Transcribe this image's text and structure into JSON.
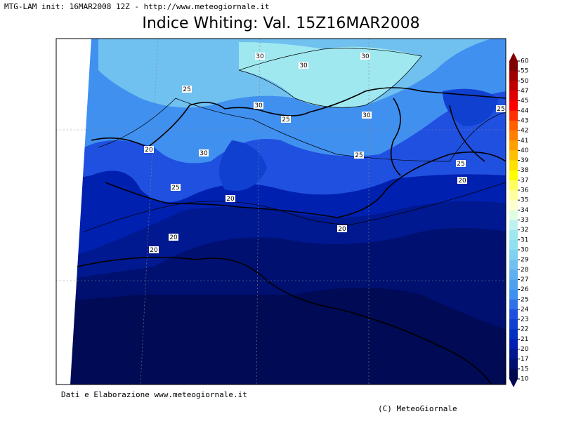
{
  "header": {
    "info": "MTG-LAM init: 16MAR2008 12Z - http://www.meteogiornale.it",
    "title": "Indice Whiting: Val. 15Z16MAR2008"
  },
  "colorbar": {
    "levels": [
      60,
      55,
      50,
      47,
      45,
      44,
      43,
      42,
      41,
      40,
      39,
      38,
      37,
      36,
      35,
      34,
      33,
      32,
      31,
      30,
      29,
      28,
      27,
      26,
      25,
      24,
      23,
      22,
      21,
      20,
      17,
      15,
      10
    ],
    "colors": [
      "#800000",
      "#a00000",
      "#c00000",
      "#e00000",
      "#ff0000",
      "#ff3000",
      "#ff6000",
      "#ff8000",
      "#ffa000",
      "#ffc000",
      "#ffe000",
      "#ffff00",
      "#ffff60",
      "#ffffa0",
      "#ffffd0",
      "#e0ffe0",
      "#c0f0f0",
      "#a0e8f0",
      "#90e0f0",
      "#80d0f0",
      "#70c0f0",
      "#60b0f0",
      "#50a0f0",
      "#4090f0",
      "#3070e8",
      "#2050e0",
      "#1040d0",
      "#0030c0",
      "#0020b0",
      "#001890",
      "#001070",
      "#000850"
    ]
  },
  "contour_labels": [
    "30",
    "30",
    "30",
    "25",
    "30",
    "25",
    "30",
    "25",
    "20",
    "30",
    "25",
    "25",
    "20",
    "25",
    "20",
    "20",
    "20",
    "20"
  ],
  "footer": {
    "credits": "Dati e Elaborazione www.meteogiornale.it",
    "copyright": "(C) MeteoGiornale"
  }
}
